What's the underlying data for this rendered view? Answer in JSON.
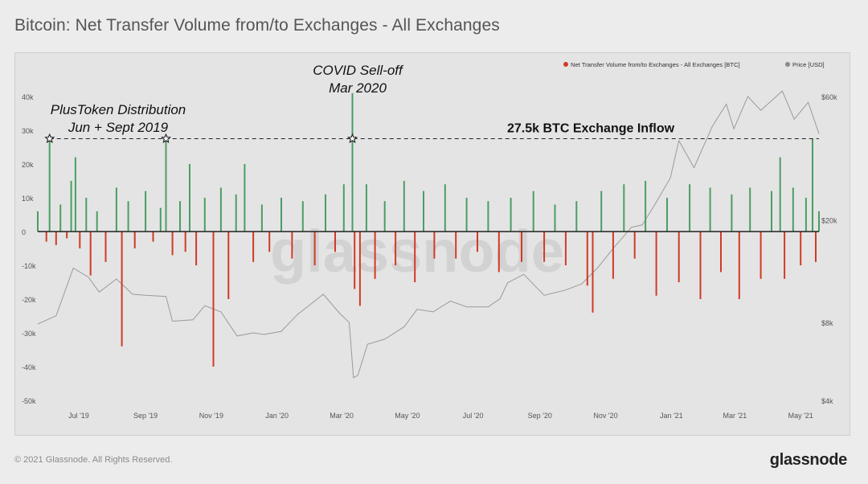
{
  "page": {
    "title": "Bitcoin: Net Transfer Volume from/to Exchanges - All Exchanges",
    "copyright": "© 2021 Glassnode. All Rights Reserved.",
    "brand": "glassnode",
    "watermark": "glassnode"
  },
  "colors": {
    "inflow": "#4a9e63",
    "outflow": "#d13a25",
    "price": "#9a9a9a",
    "background": "#e4e4e4"
  },
  "chart_data": {
    "type": "bar",
    "title": "Bitcoin: Net Transfer Volume from/to Exchanges - All Exchanges",
    "y_left": {
      "min": -50000,
      "max": 40000,
      "ticks": [
        40000,
        30000,
        20000,
        10000,
        0,
        -10000,
        -20000,
        -30000,
        -40000,
        -50000
      ],
      "tick_labels": [
        "40k",
        "30k",
        "20k",
        "10k",
        "0",
        "-10k",
        "-20k",
        "-30k",
        "-40k",
        "-50k"
      ]
    },
    "y_right": {
      "scale": "log",
      "ticks": [
        60000,
        20000,
        8000,
        4000
      ],
      "tick_labels": [
        "$60k",
        "$20k",
        "$8k",
        "$4k"
      ]
    },
    "x_range": [
      "2019-05-24",
      "2021-05-18"
    ],
    "x_ticks": [
      "2019-07-01",
      "2019-09-01",
      "2019-11-01",
      "2020-01-01",
      "2020-03-01",
      "2020-05-01",
      "2020-07-01",
      "2020-09-01",
      "2020-11-01",
      "2021-01-01",
      "2021-03-01",
      "2021-05-01"
    ],
    "x_tick_labels": [
      "Jul '19",
      "Sep '19",
      "Nov '19",
      "Jan '20",
      "Mar '20",
      "May '20",
      "Jul '20",
      "Sep '20",
      "Nov '20",
      "Jan '21",
      "Mar '21",
      "May '21"
    ],
    "legend": {
      "placement": "top-right",
      "entries": [
        {
          "name": "Net Transfer Volume from/to Exchanges - All Exchanges [BTC]",
          "color": "#d13a25"
        },
        {
          "name": "Price [USD]",
          "color": "#8a8a8a"
        }
      ]
    },
    "series": [
      {
        "name": "Net Transfer Volume from/to Exchanges - All Exchanges [BTC]",
        "style": "bars",
        "points": [
          [
            "2019-05-24",
            6000
          ],
          [
            "2019-06-01",
            -3000
          ],
          [
            "2019-06-04",
            27500
          ],
          [
            "2019-06-10",
            -4000
          ],
          [
            "2019-06-14",
            8000
          ],
          [
            "2019-06-20",
            -2000
          ],
          [
            "2019-06-24",
            15000
          ],
          [
            "2019-06-28",
            22000
          ],
          [
            "2019-07-02",
            -5000
          ],
          [
            "2019-07-08",
            10000
          ],
          [
            "2019-07-12",
            -13000
          ],
          [
            "2019-07-18",
            6000
          ],
          [
            "2019-07-26",
            -9000
          ],
          [
            "2019-08-05",
            13000
          ],
          [
            "2019-08-10",
            -34000
          ],
          [
            "2019-08-16",
            9000
          ],
          [
            "2019-08-22",
            -5000
          ],
          [
            "2019-09-01",
            12000
          ],
          [
            "2019-09-08",
            -3000
          ],
          [
            "2019-09-15",
            7000
          ],
          [
            "2019-09-20",
            27500
          ],
          [
            "2019-09-26",
            -7000
          ],
          [
            "2019-10-03",
            9000
          ],
          [
            "2019-10-08",
            -6000
          ],
          [
            "2019-10-12",
            20000
          ],
          [
            "2019-10-18",
            -10000
          ],
          [
            "2019-10-26",
            10000
          ],
          [
            "2019-11-03",
            -40000
          ],
          [
            "2019-11-10",
            13000
          ],
          [
            "2019-11-17",
            -20000
          ],
          [
            "2019-11-24",
            11000
          ],
          [
            "2019-12-02",
            20000
          ],
          [
            "2019-12-10",
            -9000
          ],
          [
            "2019-12-18",
            8000
          ],
          [
            "2019-12-25",
            -6000
          ],
          [
            "2020-01-05",
            10000
          ],
          [
            "2020-01-15",
            -8000
          ],
          [
            "2020-01-25",
            9000
          ],
          [
            "2020-02-05",
            -10000
          ],
          [
            "2020-02-15",
            11000
          ],
          [
            "2020-02-24",
            -6000
          ],
          [
            "2020-03-03",
            14000
          ],
          [
            "2020-03-11",
            41000
          ],
          [
            "2020-03-13",
            -17000
          ],
          [
            "2020-03-18",
            -22000
          ],
          [
            "2020-03-24",
            14000
          ],
          [
            "2020-04-01",
            -14000
          ],
          [
            "2020-04-10",
            9000
          ],
          [
            "2020-04-20",
            -10000
          ],
          [
            "2020-04-28",
            15000
          ],
          [
            "2020-05-08",
            -15000
          ],
          [
            "2020-05-16",
            12000
          ],
          [
            "2020-05-26",
            -8000
          ],
          [
            "2020-06-05",
            14000
          ],
          [
            "2020-06-15",
            -8000
          ],
          [
            "2020-06-25",
            10000
          ],
          [
            "2020-07-05",
            -6000
          ],
          [
            "2020-07-15",
            9000
          ],
          [
            "2020-07-25",
            -12000
          ],
          [
            "2020-08-05",
            10000
          ],
          [
            "2020-08-15",
            -9000
          ],
          [
            "2020-08-26",
            12000
          ],
          [
            "2020-09-05",
            -9000
          ],
          [
            "2020-09-15",
            8000
          ],
          [
            "2020-09-25",
            -10000
          ],
          [
            "2020-10-05",
            9000
          ],
          [
            "2020-10-15",
            -16000
          ],
          [
            "2020-10-20",
            -24000
          ],
          [
            "2020-10-28",
            12000
          ],
          [
            "2020-11-08",
            -14000
          ],
          [
            "2020-11-18",
            14000
          ],
          [
            "2020-11-28",
            -8000
          ],
          [
            "2020-12-08",
            15000
          ],
          [
            "2020-12-18",
            -19000
          ],
          [
            "2020-12-28",
            10000
          ],
          [
            "2021-01-08",
            -15000
          ],
          [
            "2021-01-18",
            14000
          ],
          [
            "2021-01-28",
            -20000
          ],
          [
            "2021-02-06",
            13000
          ],
          [
            "2021-02-16",
            -12000
          ],
          [
            "2021-02-26",
            11000
          ],
          [
            "2021-03-05",
            -20000
          ],
          [
            "2021-03-15",
            13000
          ],
          [
            "2021-03-25",
            -14000
          ],
          [
            "2021-04-04",
            12000
          ],
          [
            "2021-04-12",
            22000
          ],
          [
            "2021-04-16",
            -14000
          ],
          [
            "2021-04-24",
            13000
          ],
          [
            "2021-05-01",
            -10000
          ],
          [
            "2021-05-06",
            10000
          ],
          [
            "2021-05-12",
            27500
          ],
          [
            "2021-05-15",
            -9000
          ],
          [
            "2021-05-18",
            6000
          ]
        ]
      },
      {
        "name": "Price [USD]",
        "style": "line",
        "axis": "right",
        "points": [
          [
            "2019-05-24",
            7900
          ],
          [
            "2019-06-10",
            8500
          ],
          [
            "2019-06-26",
            13000
          ],
          [
            "2019-07-10",
            12000
          ],
          [
            "2019-07-20",
            10500
          ],
          [
            "2019-08-05",
            11800
          ],
          [
            "2019-08-20",
            10300
          ],
          [
            "2019-09-01",
            10200
          ],
          [
            "2019-09-20",
            10100
          ],
          [
            "2019-09-26",
            8100
          ],
          [
            "2019-10-15",
            8200
          ],
          [
            "2019-10-26",
            9300
          ],
          [
            "2019-11-10",
            8800
          ],
          [
            "2019-11-25",
            7100
          ],
          [
            "2019-12-10",
            7300
          ],
          [
            "2019-12-20",
            7200
          ],
          [
            "2020-01-05",
            7400
          ],
          [
            "2020-01-20",
            8600
          ],
          [
            "2020-02-13",
            10300
          ],
          [
            "2020-02-28",
            8700
          ],
          [
            "2020-03-08",
            8000
          ],
          [
            "2020-03-12",
            4900
          ],
          [
            "2020-03-16",
            5000
          ],
          [
            "2020-03-25",
            6600
          ],
          [
            "2020-04-10",
            6900
          ],
          [
            "2020-04-28",
            7700
          ],
          [
            "2020-05-10",
            9000
          ],
          [
            "2020-05-25",
            8800
          ],
          [
            "2020-06-10",
            9700
          ],
          [
            "2020-06-25",
            9200
          ],
          [
            "2020-07-15",
            9200
          ],
          [
            "2020-07-26",
            9900
          ],
          [
            "2020-08-02",
            11400
          ],
          [
            "2020-08-17",
            12300
          ],
          [
            "2020-09-05",
            10200
          ],
          [
            "2020-09-25",
            10700
          ],
          [
            "2020-10-10",
            11300
          ],
          [
            "2020-10-25",
            13100
          ],
          [
            "2020-11-08",
            15500
          ],
          [
            "2020-11-25",
            18700
          ],
          [
            "2020-12-05",
            19100
          ],
          [
            "2020-12-17",
            23000
          ],
          [
            "2020-12-31",
            29000
          ],
          [
            "2021-01-08",
            40500
          ],
          [
            "2021-01-22",
            31800
          ],
          [
            "2021-02-08",
            46000
          ],
          [
            "2021-02-21",
            56000
          ],
          [
            "2021-02-28",
            45000
          ],
          [
            "2021-03-13",
            60000
          ],
          [
            "2021-03-25",
            53000
          ],
          [
            "2021-04-14",
            63000
          ],
          [
            "2021-04-25",
            49000
          ],
          [
            "2021-05-08",
            57000
          ],
          [
            "2021-05-18",
            43000
          ]
        ]
      }
    ],
    "reference_line": {
      "value": 27500,
      "label": "27.5k BTC Exchange Inflow"
    },
    "annotations": [
      {
        "text_lines": [
          "PlusToken Distribution",
          "Jun + Sept 2019"
        ],
        "dates": [
          "2019-06-04",
          "2019-09-20"
        ],
        "value": 27500
      },
      {
        "text_lines": [
          "COVID Sell-off",
          "Mar 2020"
        ],
        "dates": [
          "2020-03-11"
        ],
        "value": 27500
      }
    ]
  }
}
